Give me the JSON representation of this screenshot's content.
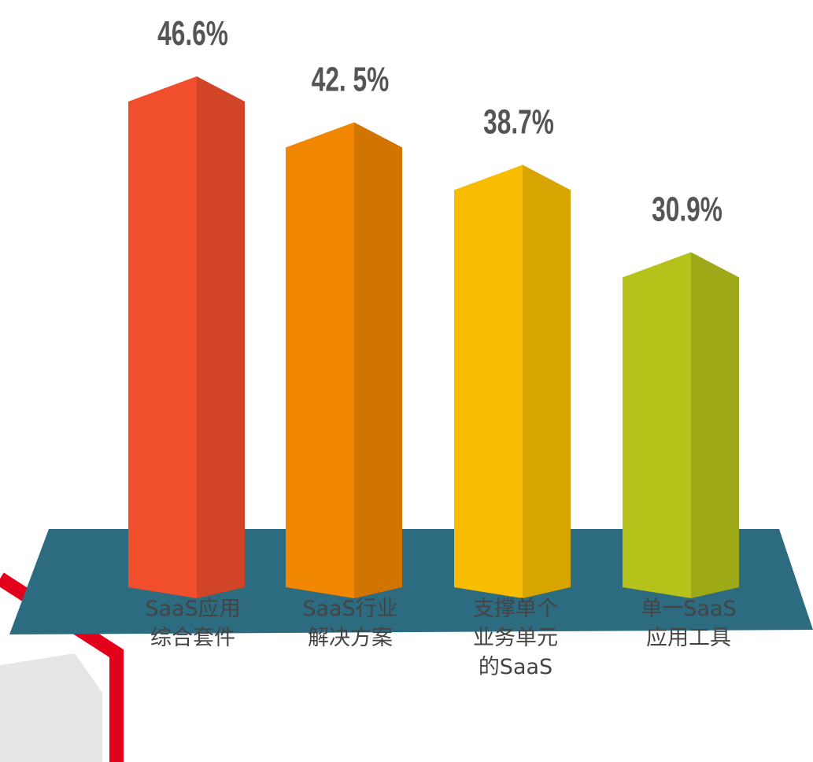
{
  "chart_data": {
    "type": "bar3d",
    "categories": [
      "SaaS应用\n综合套件",
      "SaaS行业\n解决方案",
      "支撑单个\n业务单元\n的SaaS",
      "单一SaaS\n应用工具"
    ],
    "values": [
      46.6,
      42.5,
      38.7,
      30.9
    ],
    "value_labels": [
      "46.6%",
      "42. 5%",
      "38.7%",
      "30.9%"
    ],
    "colors": [
      "#f04e2c",
      "#f18700",
      "#f8bc00",
      "#b5c21a"
    ]
  }
}
